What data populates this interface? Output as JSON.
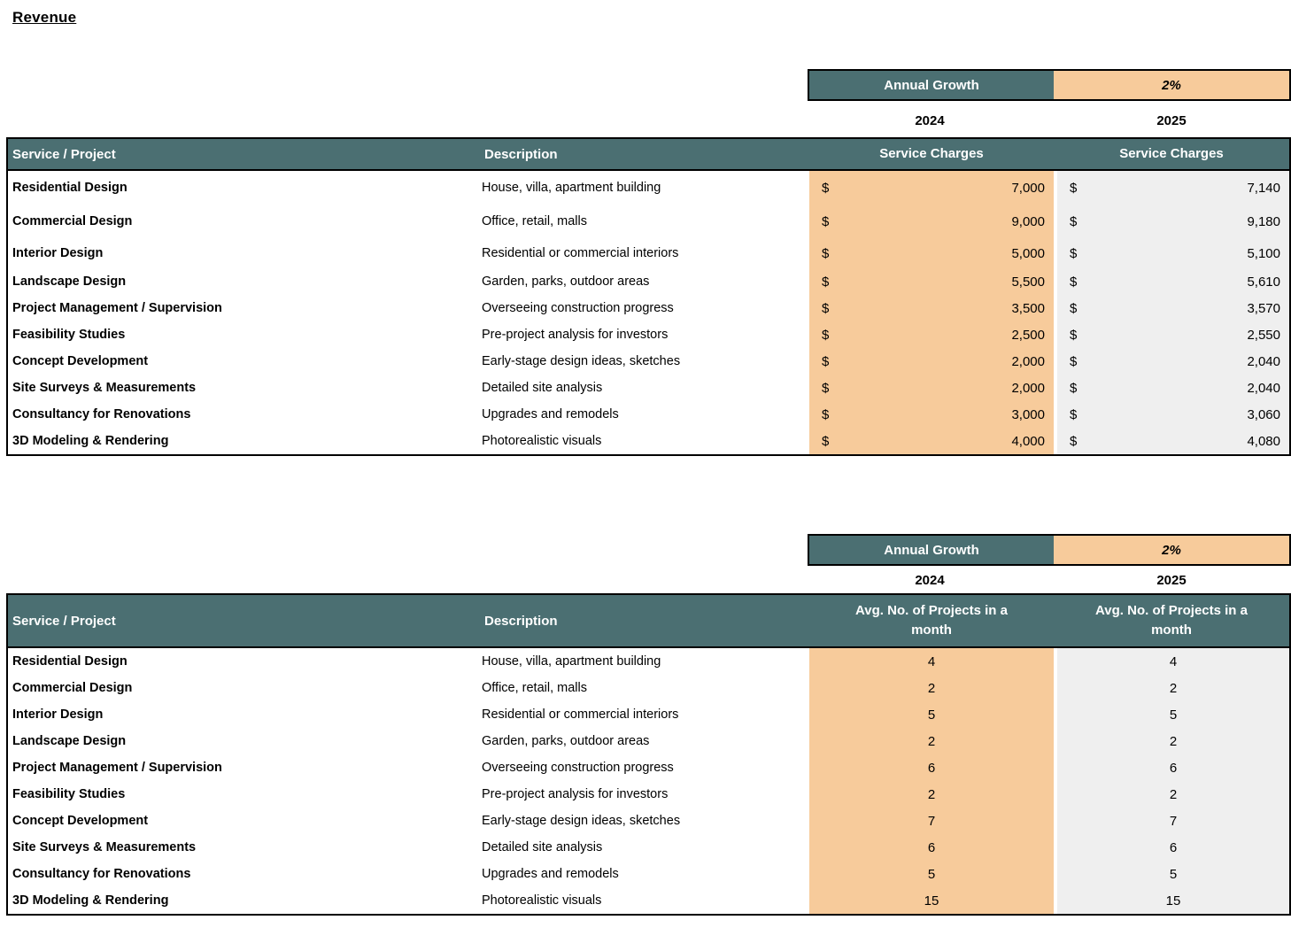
{
  "page": {
    "title": "Revenue"
  },
  "colors": {
    "teal": "#4B6F72",
    "orange": "#F7CB9B",
    "gray": "#EFEFEF",
    "border": "#000000"
  },
  "sections": [
    {
      "growth_label": "Annual Growth",
      "growth_value": "2%",
      "year_left": "2024",
      "year_right": "2025",
      "col_service": "Service / Project",
      "col_description": "Description",
      "col_left": "Service Charges",
      "col_right": "Service Charges",
      "currency": "$",
      "rows": [
        {
          "service": "Residential Design",
          "description": "House, villa, apartment building",
          "v2024": "7,000",
          "v2025": "7,140"
        },
        {
          "service": "Commercial Design",
          "description": "Office, retail, malls",
          "v2024": "9,000",
          "v2025": "9,180"
        },
        {
          "service": "Interior Design",
          "description": "Residential or commercial interiors",
          "v2024": "5,000",
          "v2025": "5,100"
        },
        {
          "service": "Landscape Design",
          "description": "Garden, parks, outdoor areas",
          "v2024": "5,500",
          "v2025": "5,610"
        },
        {
          "service": "Project Management / Supervision",
          "description": "Overseeing construction progress",
          "v2024": "3,500",
          "v2025": "3,570"
        },
        {
          "service": "Feasibility Studies",
          "description": "Pre-project analysis for investors",
          "v2024": "2,500",
          "v2025": "2,550"
        },
        {
          "service": "Concept Development",
          "description": "Early-stage design ideas, sketches",
          "v2024": "2,000",
          "v2025": "2,040"
        },
        {
          "service": "Site Surveys & Measurements",
          "description": "Detailed site analysis",
          "v2024": "2,000",
          "v2025": "2,040"
        },
        {
          "service": "Consultancy for Renovations",
          "description": "Upgrades and remodels",
          "v2024": "3,000",
          "v2025": "3,060"
        },
        {
          "service": "3D Modeling & Rendering",
          "description": "Photorealistic visuals",
          "v2024": "4,000",
          "v2025": "4,080"
        }
      ]
    },
    {
      "growth_label": "Annual Growth",
      "growth_value": "2%",
      "year_left": "2024",
      "year_right": "2025",
      "col_service": "Service / Project",
      "col_description": "Description",
      "col_left": "Avg. No. of Projects in a month",
      "col_right": "Avg. No. of Projects in a month",
      "rows": [
        {
          "service": "Residential Design",
          "description": "House, villa, apartment building",
          "v2024": "4",
          "v2025": "4"
        },
        {
          "service": "Commercial Design",
          "description": "Office, retail, malls",
          "v2024": "2",
          "v2025": "2"
        },
        {
          "service": "Interior Design",
          "description": "Residential or commercial interiors",
          "v2024": "5",
          "v2025": "5"
        },
        {
          "service": "Landscape Design",
          "description": "Garden, parks, outdoor areas",
          "v2024": "2",
          "v2025": "2"
        },
        {
          "service": "Project Management / Supervision",
          "description": "Overseeing construction progress",
          "v2024": "6",
          "v2025": "6"
        },
        {
          "service": "Feasibility Studies",
          "description": "Pre-project analysis for investors",
          "v2024": "2",
          "v2025": "2"
        },
        {
          "service": "Concept Development",
          "description": "Early-stage design ideas, sketches",
          "v2024": "7",
          "v2025": "7"
        },
        {
          "service": "Site Surveys & Measurements",
          "description": "Detailed site analysis",
          "v2024": "6",
          "v2025": "6"
        },
        {
          "service": "Consultancy for Renovations",
          "description": "Upgrades and remodels",
          "v2024": "5",
          "v2025": "5"
        },
        {
          "service": "3D Modeling & Rendering",
          "description": "Photorealistic visuals",
          "v2024": "15",
          "v2025": "15"
        }
      ]
    }
  ]
}
